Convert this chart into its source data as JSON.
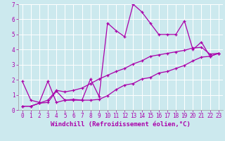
{
  "xlabel": "Windchill (Refroidissement éolien,°C)",
  "xlim": [
    -0.5,
    23.5
  ],
  "ylim": [
    0,
    7
  ],
  "xticks": [
    0,
    1,
    2,
    3,
    4,
    5,
    6,
    7,
    8,
    9,
    10,
    11,
    12,
    13,
    14,
    15,
    16,
    17,
    18,
    19,
    20,
    21,
    22,
    23
  ],
  "yticks": [
    0,
    1,
    2,
    3,
    4,
    5,
    6,
    7
  ],
  "background_color": "#cce9ee",
  "line_color": "#aa00aa",
  "grid_color": "#ffffff",
  "line1_y": [
    1.9,
    0.65,
    0.5,
    1.9,
    0.5,
    0.65,
    0.65,
    0.65,
    2.05,
    0.9,
    5.75,
    5.25,
    4.85,
    7.0,
    6.5,
    5.75,
    5.0,
    5.0,
    5.0,
    5.9,
    4.0,
    4.5,
    3.55,
    3.75
  ],
  "line2_y": [
    0.25,
    0.25,
    0.45,
    0.5,
    1.25,
    0.65,
    0.7,
    0.65,
    0.65,
    0.7,
    0.95,
    1.35,
    1.65,
    1.75,
    2.05,
    2.15,
    2.45,
    2.55,
    2.75,
    2.95,
    3.25,
    3.5,
    3.55,
    3.75
  ],
  "line3_y": [
    0.25,
    0.25,
    0.45,
    0.65,
    1.3,
    1.2,
    1.3,
    1.45,
    1.75,
    2.05,
    2.3,
    2.55,
    2.75,
    3.05,
    3.25,
    3.55,
    3.65,
    3.75,
    3.85,
    3.95,
    4.1,
    4.15,
    3.7,
    3.75
  ],
  "tick_fontsize": 5.5,
  "label_fontsize": 6.5
}
